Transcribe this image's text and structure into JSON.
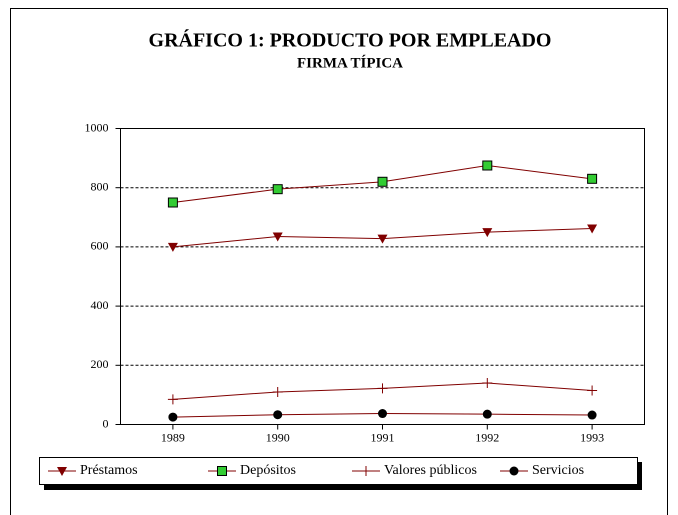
{
  "chart_data": {
    "type": "line",
    "title": "GRÁFICO 1: PRODUCTO POR EMPLEADO",
    "subtitle": "FIRMA TÍPICA",
    "categories": [
      "1989",
      "1990",
      "1991",
      "1992",
      "1993"
    ],
    "series": [
      {
        "name": "Préstamos",
        "color": "#800000",
        "marker": "triangle-down",
        "marker_color": "#800000",
        "values": [
          600,
          635,
          628,
          650,
          662
        ]
      },
      {
        "name": "Depósitos",
        "color": "#800000",
        "marker": "square",
        "marker_color": "#33cc33",
        "values": [
          750,
          795,
          820,
          875,
          830
        ]
      },
      {
        "name": "Valores públicos",
        "color": "#800000",
        "marker": "plus",
        "marker_color": "#800000",
        "values": [
          85,
          110,
          122,
          140,
          115
        ]
      },
      {
        "name": "Servicios",
        "color": "#800000",
        "marker": "circle",
        "marker_color": "#000000",
        "values": [
          25,
          33,
          37,
          35,
          32
        ]
      }
    ],
    "ylim": [
      0,
      1000
    ],
    "yticks": [
      0,
      200,
      400,
      600,
      800,
      1000
    ],
    "grid": true,
    "legend": "bottom"
  }
}
